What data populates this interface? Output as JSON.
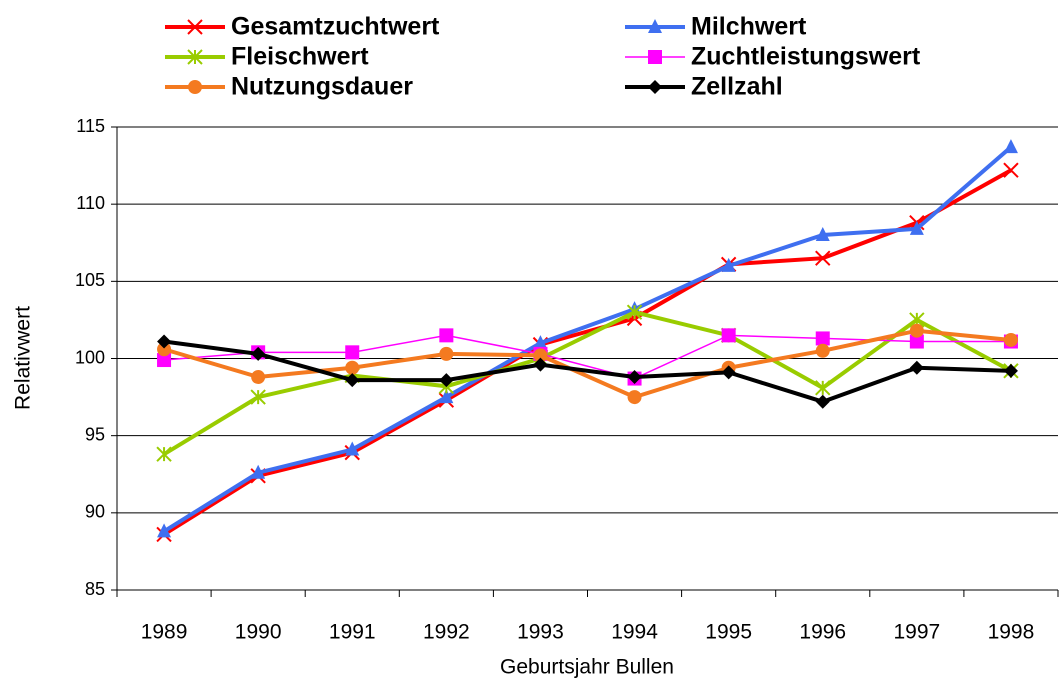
{
  "chart_data": {
    "type": "line",
    "x_label": "Geburtsjahr Bullen",
    "y_label": "Relativwert",
    "categories": [
      "1989",
      "1990",
      "1991",
      "1992",
      "1993",
      "1994",
      "1995",
      "1996",
      "1997",
      "1998"
    ],
    "series": [
      {
        "name": "Gesamtzuchtwert",
        "color": "#ff0000",
        "marker": "x",
        "values": [
          88.6,
          92.4,
          93.9,
          97.3,
          100.9,
          102.6,
          106.1,
          106.5,
          108.8,
          112.2
        ]
      },
      {
        "name": "Milchwert",
        "color": "#3f6ff0",
        "marker": "triangle",
        "values": [
          88.8,
          92.6,
          94.1,
          97.5,
          101.0,
          103.2,
          106.0,
          108.0,
          108.4,
          113.7
        ]
      },
      {
        "name": "Fleischwert",
        "color": "#99cc00",
        "marker": "asterisk",
        "values": [
          93.8,
          97.5,
          98.9,
          98.2,
          100.0,
          103.0,
          101.5,
          98.1,
          102.5,
          99.2
        ]
      },
      {
        "name": "Zuchtleistungswert",
        "color": "#ff00ff",
        "marker": "square",
        "values": [
          99.9,
          100.4,
          100.4,
          101.5,
          100.3,
          98.7,
          101.5,
          101.3,
          101.1,
          101.1
        ]
      },
      {
        "name": "Nutzungsdauer",
        "color": "#f47a20",
        "marker": "circle",
        "values": [
          100.6,
          98.8,
          99.4,
          100.3,
          100.2,
          97.5,
          99.4,
          100.5,
          101.8,
          101.2
        ]
      },
      {
        "name": "Zellzahl",
        "color": "#000000",
        "marker": "diamond",
        "values": [
          101.1,
          100.3,
          98.6,
          98.6,
          99.6,
          98.8,
          99.1,
          97.2,
          99.4,
          99.2
        ]
      }
    ],
    "ylim": [
      85,
      115
    ],
    "yticks": [
      85,
      90,
      95,
      100,
      105,
      110,
      115
    ],
    "grid": true
  }
}
